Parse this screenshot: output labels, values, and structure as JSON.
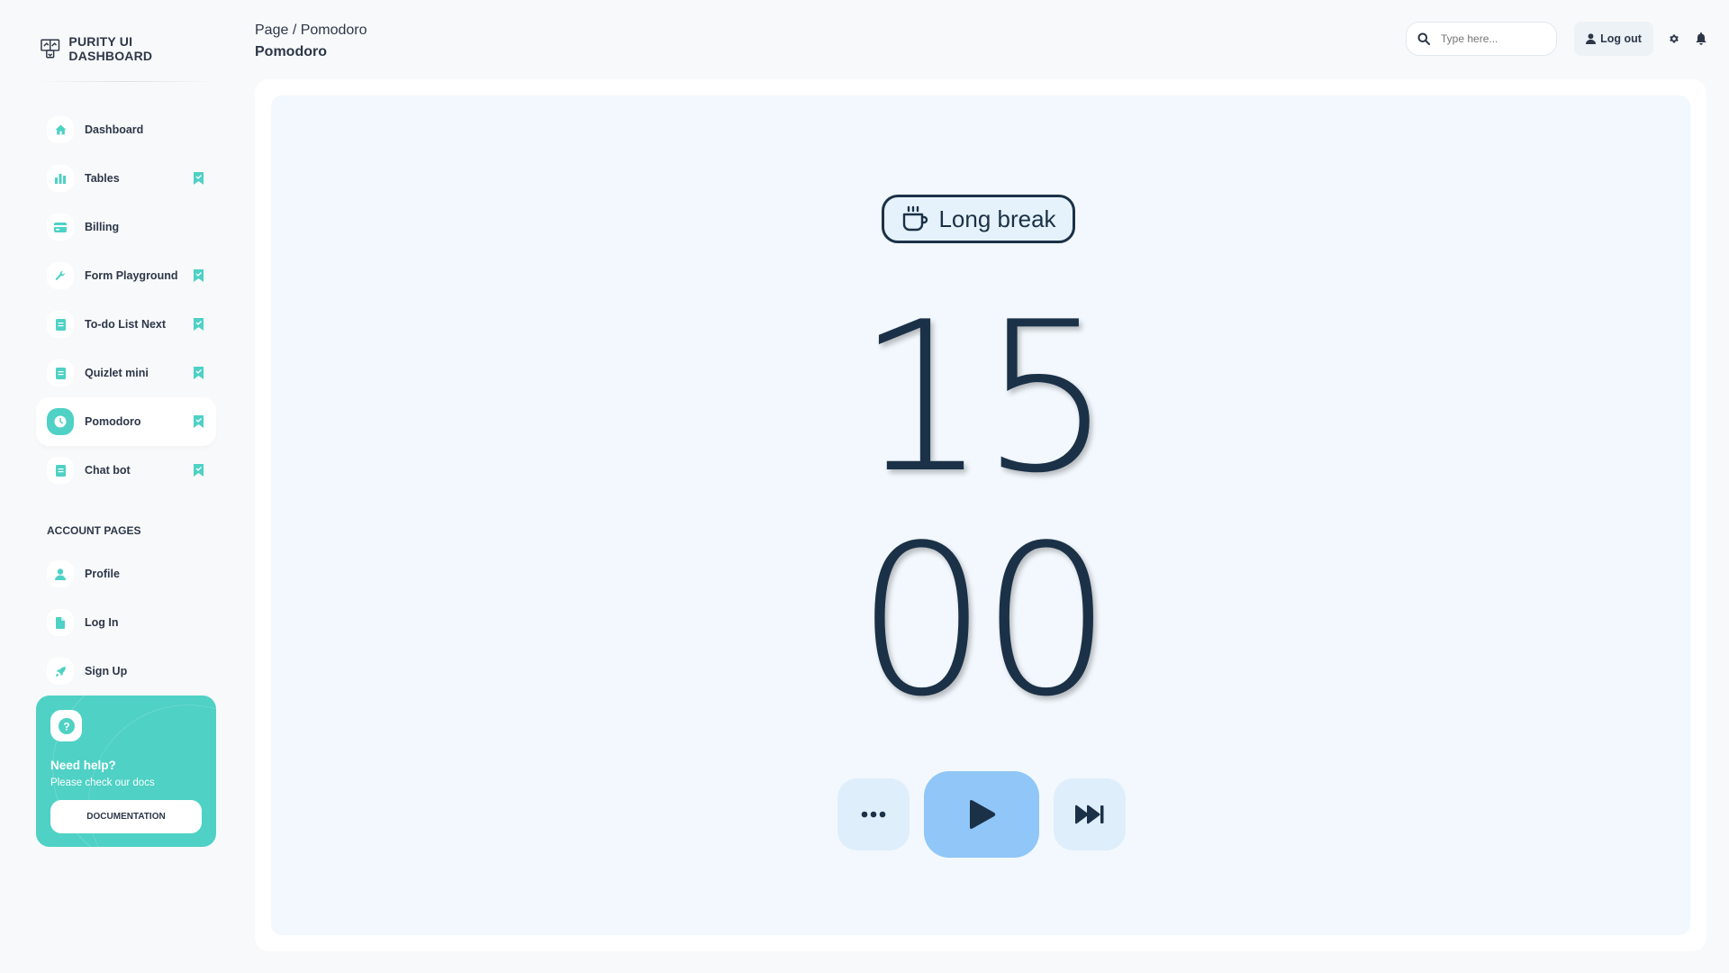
{
  "brand": {
    "name": "PURITY UI DASHBOARD"
  },
  "sidebar": {
    "items": [
      {
        "label": "Dashboard",
        "icon": "home-icon",
        "bookmark": false,
        "active": false
      },
      {
        "label": "Tables",
        "icon": "bar-chart-icon",
        "bookmark": true,
        "active": false
      },
      {
        "label": "Billing",
        "icon": "credit-card-icon",
        "bookmark": false,
        "active": false
      },
      {
        "label": "Form Playground",
        "icon": "wrench-icon",
        "bookmark": true,
        "active": false
      },
      {
        "label": "To-do List Next",
        "icon": "document-icon",
        "bookmark": true,
        "active": false
      },
      {
        "label": "Quizlet mini",
        "icon": "document-icon",
        "bookmark": true,
        "active": false
      },
      {
        "label": "Pomodoro",
        "icon": "clock-icon",
        "bookmark": true,
        "active": true
      },
      {
        "label": "Chat bot",
        "icon": "document-icon",
        "bookmark": true,
        "active": false
      }
    ],
    "section_title": "ACCOUNT PAGES",
    "account_items": [
      {
        "label": "Profile",
        "icon": "person-icon"
      },
      {
        "label": "Log In",
        "icon": "file-icon"
      },
      {
        "label": "Sign Up",
        "icon": "rocket-icon"
      }
    ]
  },
  "help_card": {
    "title": "Need help?",
    "subtitle": "Please check our docs",
    "button_label": "DOCUMENTATION"
  },
  "header": {
    "breadcrumb": "Page / Pomodoro",
    "title": "Pomodoro",
    "search_placeholder": "Type here...",
    "logout_label": "Log out"
  },
  "timer": {
    "mode_label": "Long break",
    "minutes": "15",
    "seconds": "00"
  },
  "colors": {
    "accent": "#4fd1c5",
    "timer_text": "#1b3147",
    "play_button": "#90c6f8",
    "control_button": "#dfeefb",
    "panel_inner": "#f2f8fd"
  }
}
